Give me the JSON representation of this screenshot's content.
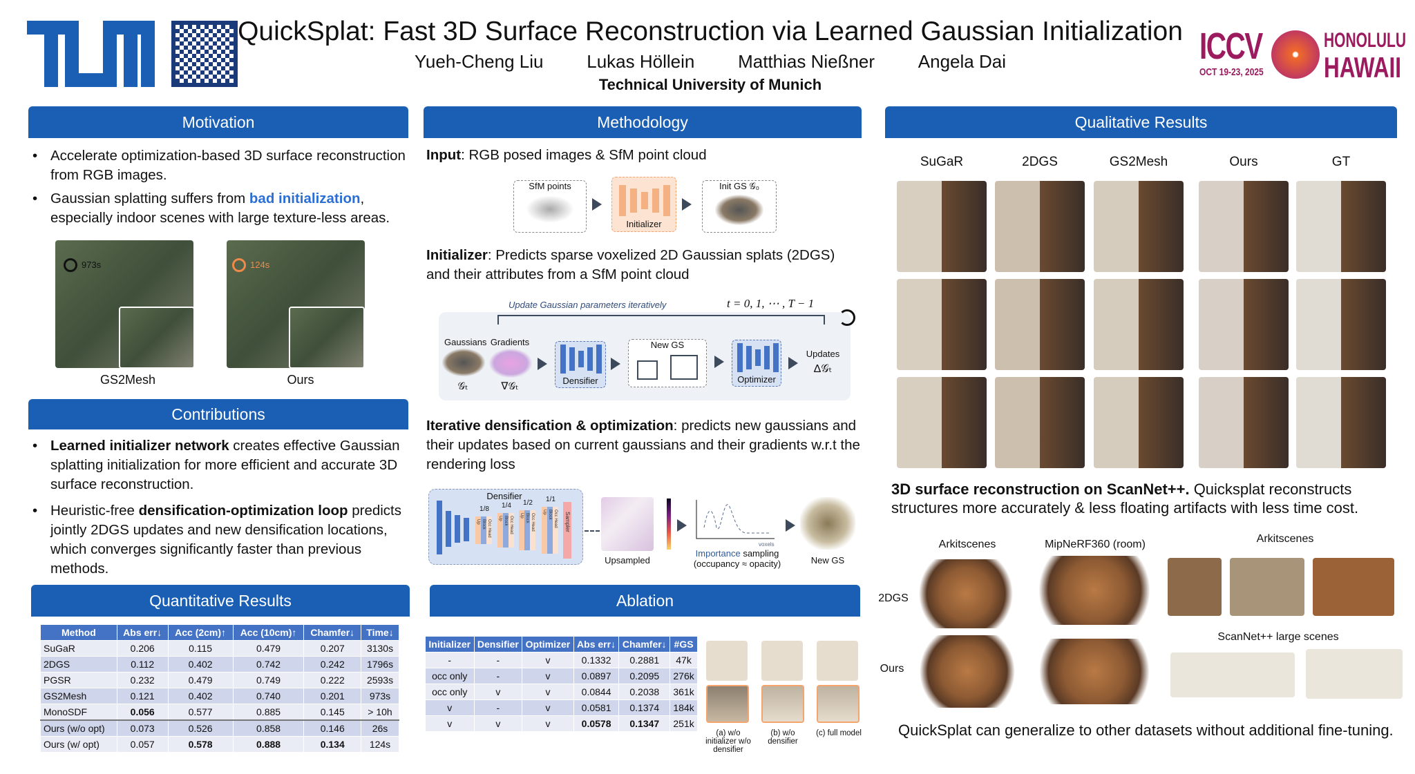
{
  "header": {
    "title": "QuickSplat: Fast 3D Surface Reconstruction via Learned Gaussian Initialization",
    "authors": [
      "Yueh-Cheng Liu",
      "Lukas Höllein",
      "Matthias Nießner",
      "Angela Dai"
    ],
    "affiliation": "Technical University of Munich",
    "left_logo": "TUM",
    "right_logo": {
      "name": "ICCV",
      "date": "OCT 19-23, 2025",
      "city": "HONOLULU",
      "state": "HAWAII"
    }
  },
  "motivation": {
    "title": "Motivation",
    "bullet1": "Accelerate optimization-based 3D surface reconstruction from RGB images.",
    "bullet2_pre": "Gaussian splatting suffers from ",
    "bullet2_hl": "bad initialization",
    "bullet2_post": ", especially indoor scenes with large texture-less areas.",
    "fig": {
      "left_time": "973s",
      "right_time": "124s",
      "left_label": "GS2Mesh",
      "right_label": "Ours"
    }
  },
  "contributions": {
    "title": "Contributions",
    "b1_bold": "Learned initializer network",
    "b1_rest": " creates effective Gaussian splatting initialization for more efficient and accurate 3D surface reconstruction.",
    "b2_pre": "Heuristic-free ",
    "b2_bold": "densification-optimization loop",
    "b2_rest": " predicts jointly 2DGS updates and new densification locations, which converges significantly faster than previous methods."
  },
  "quantitative": {
    "title": "Quantitative Results",
    "columns": [
      "Method",
      "Abs err↓",
      "Acc (2cm)↑",
      "Acc (10cm)↑",
      "Chamfer↓",
      "Time↓"
    ],
    "rows": [
      [
        "SuGaR",
        "0.206",
        "0.115",
        "0.479",
        "0.207",
        "3130s"
      ],
      [
        "2DGS",
        "0.112",
        "0.402",
        "0.742",
        "0.242",
        "1796s"
      ],
      [
        "PGSR",
        "0.232",
        "0.479",
        "0.749",
        "0.222",
        "2593s"
      ],
      [
        "GS2Mesh",
        "0.121",
        "0.402",
        "0.740",
        "0.201",
        "973s"
      ],
      [
        "MonoSDF",
        "0.056",
        "0.577",
        "0.885",
        "0.145",
        "> 10h"
      ],
      [
        "Ours (w/o opt)",
        "0.073",
        "0.526",
        "0.858",
        "0.146",
        "26s"
      ],
      [
        "Ours (w/ opt)",
        "0.057",
        "0.578",
        "0.888",
        "0.134",
        "124s"
      ]
    ]
  },
  "methodology": {
    "title": "Methodology",
    "input_bold": "Input",
    "input_rest": ": RGB posed images & SfM point cloud",
    "fig1": {
      "sfm": "SfM points",
      "initializer": "Initializer",
      "init_gs": "Init GS 𝒢₀"
    },
    "init_bold": "Initializer",
    "init_rest": ": Predicts sparse voxelized 2D Gaussian splats (2DGS) and their attributes from a SfM point cloud",
    "fig2": {
      "loop": "Update Gaussian parameters iteratively",
      "t": "t = 0, 1, ⋯ , T − 1",
      "gaussians": "Gaussians",
      "g_sym": "𝒢ₜ",
      "gradients": "Gradients",
      "grad_sym": "∇𝒢ₜ",
      "densifier": "Densifier",
      "new_gs": "New GS",
      "optimizer": "Optimizer",
      "updates": "Updates",
      "upd_sym": "Δ𝒢ₜ"
    },
    "iter_bold": "Iterative densification & optimization",
    "iter_rest": ": predicts new gaussians and their updates based on current gaussians and their gradients w.r.t the rendering loss",
    "fig3": {
      "densifier": "Densifier",
      "scales": [
        "1/8",
        "1/4",
        "1/2",
        "1/1"
      ],
      "upsampled": "Upsampled",
      "voxels": "voxels",
      "imp_hl": "Importance",
      "imp_rest": " sampling",
      "imp_line2": "(occupancy ≈ opacity)",
      "new_gs": "New GS",
      "block_labels": [
        "Up",
        "Block",
        "Occ Head"
      ],
      "sampler": "Sampler"
    }
  },
  "ablation": {
    "title": "Ablation",
    "columns": [
      "Initializer",
      "Densifier",
      "Optimizer",
      "Abs err↓",
      "Chamfer↓",
      "#GS"
    ],
    "rows": [
      [
        "-",
        "-",
        "v",
        "0.1332",
        "0.2881",
        "47k"
      ],
      [
        "occ only",
        "-",
        "v",
        "0.0897",
        "0.2095",
        "276k"
      ],
      [
        "occ only",
        "v",
        "v",
        "0.0844",
        "0.2038",
        "361k"
      ],
      [
        "v",
        "-",
        "v",
        "0.0581",
        "0.1374",
        "184k"
      ],
      [
        "v",
        "v",
        "v",
        "0.0578",
        "0.1347",
        "251k"
      ]
    ],
    "captions": [
      "(a) w/o initializer w/o densifier",
      "(b) w/o densifier",
      "(c) full model"
    ]
  },
  "qualitative": {
    "title": "Qualitative Results",
    "methods": [
      "SuGaR",
      "2DGS",
      "GS2Mesh",
      "Ours",
      "GT"
    ],
    "caption_bold": "3D surface reconstruction on ScanNet++.",
    "caption_rest": " Quicksplat reconstructs structures more accurately & less floating artifacts with less time cost.",
    "gen": {
      "arkit1": "Arkitscenes",
      "mip": "MipNeRF360 (room)",
      "arkit2": "Arkitscenes",
      "scannet_large": "ScanNet++ large scenes",
      "row1": "2DGS",
      "row2": "Ours"
    },
    "gen_caption": "QuickSplat can generalize to other datasets without additional fine-tuning."
  },
  "colors": {
    "header_blue": "#1a5fb4",
    "table_blue": "#4472c4",
    "highlight": "#2b6fd6",
    "initializer_orange": "#f4b183",
    "iccv_magenta": "#9c1a5e"
  }
}
